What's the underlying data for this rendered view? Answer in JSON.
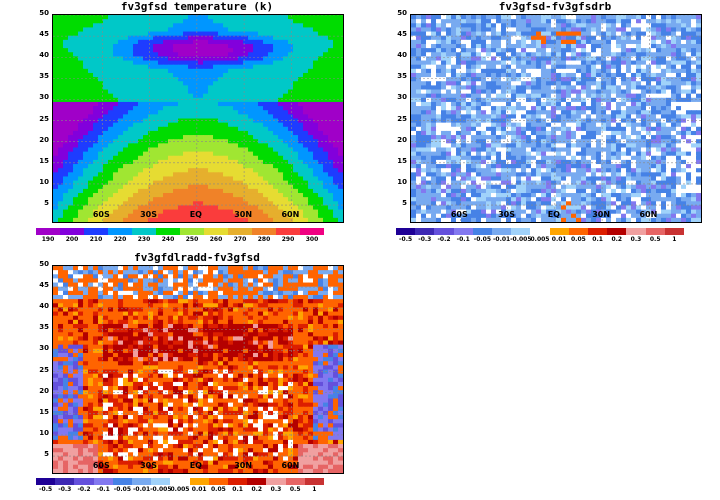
{
  "chart_data": [
    {
      "type": "heatmap",
      "title": "fv3gfsd temperature (k)",
      "y_ticks": [
        "5",
        "10",
        "15",
        "20",
        "25",
        "30",
        "35",
        "40",
        "45",
        "50"
      ],
      "x_ticks": [
        "60S",
        "30S",
        "EQ",
        "30N",
        "60N"
      ],
      "ylim": [
        1,
        50
      ],
      "grid": true,
      "colorbar": {
        "labels": [
          "190",
          "200",
          "210",
          "220",
          "230",
          "240",
          "250",
          "260",
          "270",
          "280",
          "290",
          "300"
        ],
        "colors": [
          "#a000c8",
          "#8200dc",
          "#1e3cff",
          "#0096ff",
          "#00c8c8",
          "#00dc00",
          "#a0e632",
          "#e6dc32",
          "#e6af2d",
          "#f08228",
          "#fa3c3c",
          "#f00082"
        ]
      },
      "field": "temperature"
    },
    {
      "type": "heatmap",
      "title": "fv3gfsd-fv3gfsdrb",
      "y_ticks": [
        "5",
        "10",
        "15",
        "20",
        "25",
        "30",
        "35",
        "40",
        "45",
        "50"
      ],
      "x_ticks": [
        "60S",
        "30S",
        "EQ",
        "30N",
        "60N"
      ],
      "ylim": [
        1,
        50
      ],
      "grid": true,
      "colorbar": {
        "labels": [
          "-0.5",
          "-0.3",
          "-0.2",
          "-0.1",
          "-0.05",
          "-0.01",
          "-0.005",
          "0.005",
          "0.01",
          "0.05",
          "0.1",
          "0.2",
          "0.3",
          "0.5",
          "1"
        ],
        "colors": [
          "#1e0096",
          "#3c28b4",
          "#6450dc",
          "#8278f0",
          "#4682e6",
          "#78aaf0",
          "#a0d2fa",
          "#ffffff",
          "#ffa500",
          "#ff6400",
          "#dc1e00",
          "#b40000",
          "#f0a0a0",
          "#e66464",
          "#c83232"
        ]
      },
      "field": "diff1"
    },
    {
      "type": "heatmap",
      "title": "fv3gfdlradd-fv3gfsd",
      "y_ticks": [
        "5",
        "10",
        "15",
        "20",
        "25",
        "30",
        "35",
        "40",
        "45",
        "50"
      ],
      "x_ticks": [
        "60S",
        "30S",
        "EQ",
        "30N",
        "60N"
      ],
      "ylim": [
        1,
        50
      ],
      "grid": true,
      "colorbar": {
        "labels": [
          "-0.5",
          "-0.3",
          "-0.2",
          "-0.1",
          "-0.05",
          "-0.01",
          "-0.005",
          "0.005",
          "0.01",
          "0.05",
          "0.1",
          "0.2",
          "0.3",
          "0.5",
          "1"
        ],
        "colors": [
          "#1e0096",
          "#3c28b4",
          "#6450dc",
          "#8278f0",
          "#4682e6",
          "#78aaf0",
          "#a0d2fa",
          "#ffffff",
          "#ffa500",
          "#ff6400",
          "#dc1e00",
          "#b40000",
          "#f0a0a0",
          "#e66464",
          "#c83232"
        ]
      },
      "field": "diff2"
    }
  ]
}
